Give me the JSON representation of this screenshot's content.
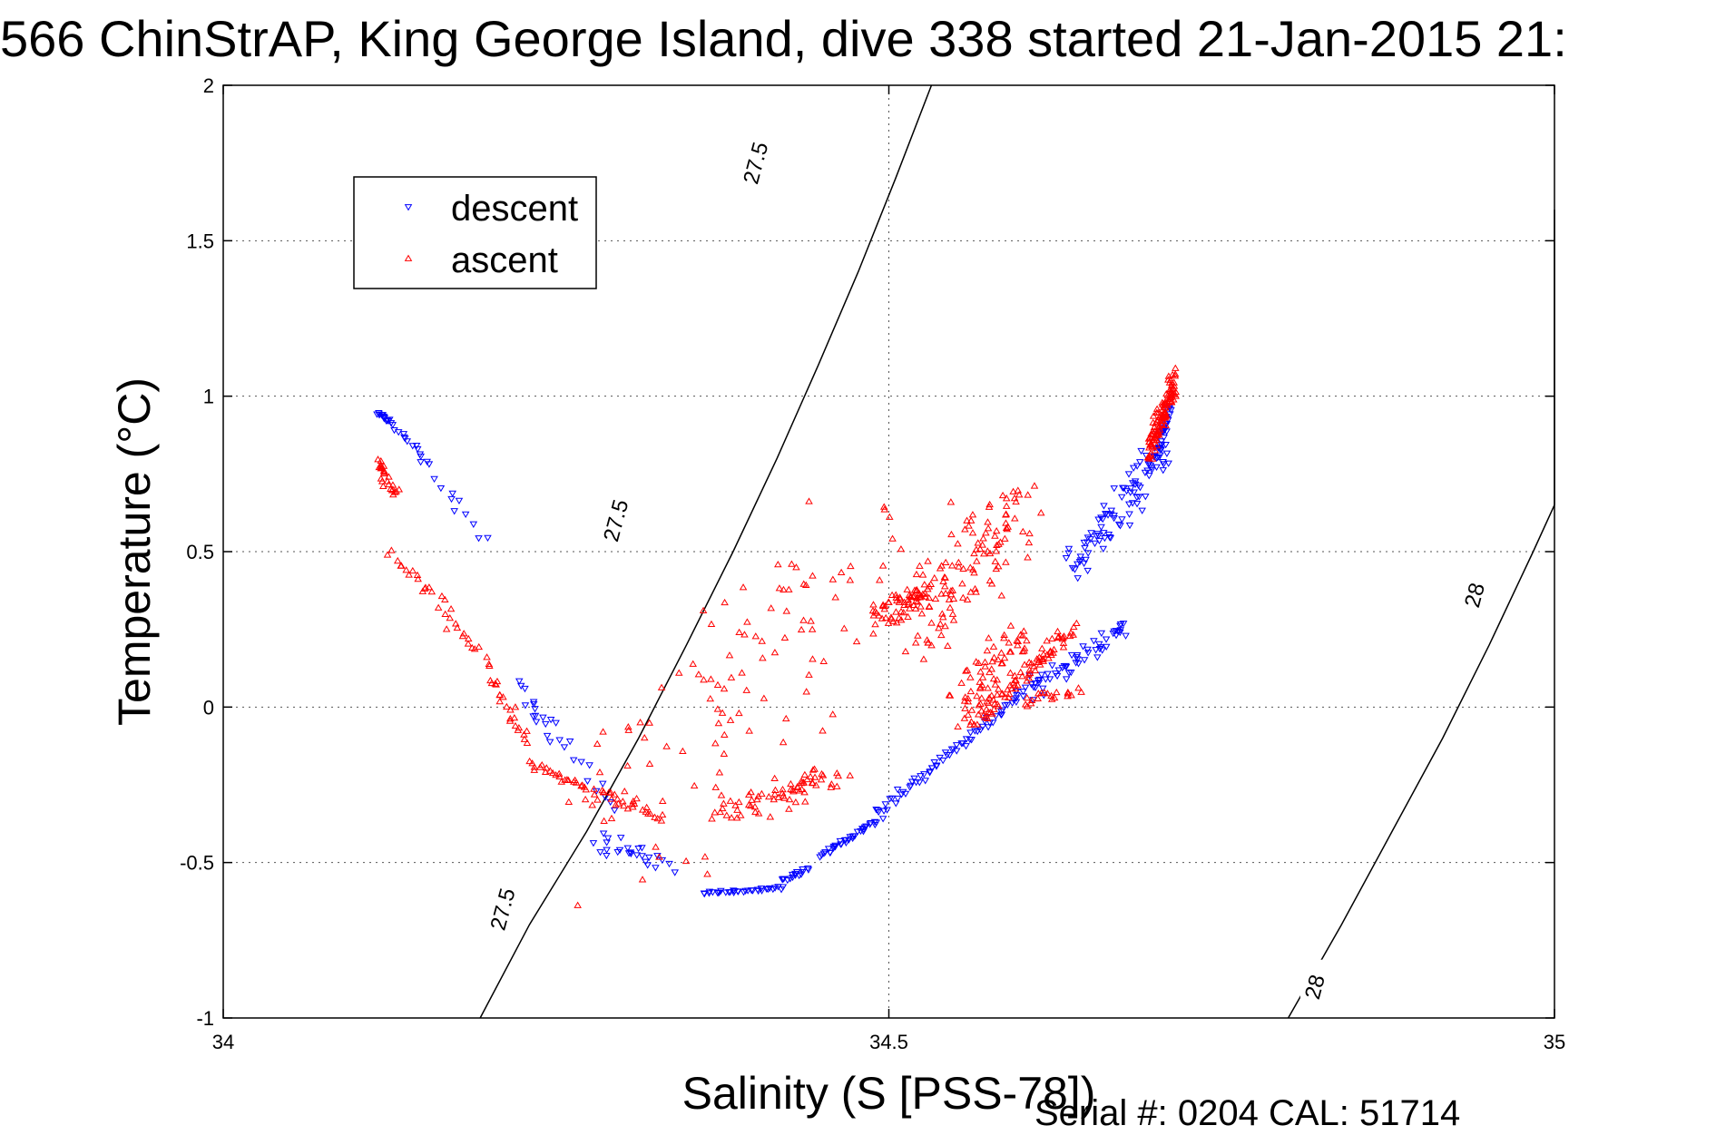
{
  "chart_data": {
    "type": "scatter",
    "title": "566 ChinStrAP, King George Island, dive 338 started 21-Jan-2015 21:",
    "xlabel": "Salinity (S [PSS-78])",
    "ylabel": "Temperature (°C)",
    "xlim": [
      34,
      35
    ],
    "ylim": [
      -1,
      2
    ],
    "x_ticks": [
      "34",
      "34.5",
      "35"
    ],
    "y_ticks": [
      "-1",
      "-0.5",
      "0",
      "0.5",
      "1",
      "1.5",
      "2"
    ],
    "x_tick_values": [
      34,
      34.5,
      35
    ],
    "y_tick_values": [
      -1,
      -0.5,
      0,
      0.5,
      1,
      1.5,
      2
    ],
    "grid": true,
    "legend_position": "top-left",
    "footer": "Serial #: 0204  CAL: 51714",
    "isopycnals": [
      {
        "label": "27.5",
        "points": [
          [
            34.193,
            -1.0
          ],
          [
            34.23,
            -0.7
          ],
          [
            34.273,
            -0.4
          ],
          [
            34.312,
            -0.1
          ],
          [
            34.348,
            0.2
          ],
          [
            34.383,
            0.5
          ],
          [
            34.416,
            0.8
          ],
          [
            34.447,
            1.1
          ],
          [
            34.477,
            1.4
          ],
          [
            34.505,
            1.7
          ],
          [
            34.532,
            2.0
          ]
        ],
        "label_positions": [
          [
            34.21,
            -0.65
          ],
          [
            34.295,
            0.6
          ],
          [
            34.4,
            1.75
          ]
        ]
      },
      {
        "label": "28",
        "points": [
          [
            34.8,
            -1.0
          ],
          [
            34.84,
            -0.7
          ],
          [
            34.878,
            -0.4
          ],
          [
            34.916,
            -0.1
          ],
          [
            34.951,
            0.2
          ],
          [
            34.984,
            0.5
          ],
          [
            35.0,
            0.65
          ]
        ],
        "label_positions": [
          [
            34.82,
            -0.9
          ],
          [
            34.94,
            0.36
          ]
        ],
        "continuation": [
          [
            35.0,
            0.65
          ],
          [
            35.0,
            1.6
          ]
        ]
      }
    ],
    "series": [
      {
        "name": "descent",
        "color": "#0000ff",
        "marker": "triangle-down",
        "segments": [
          {
            "n": 14,
            "x": [
              34.115,
              34.125
            ],
            "y": [
              0.95,
              0.92
            ],
            "jitter": [
              0.002,
              0.008
            ]
          },
          {
            "n": 16,
            "x": [
              34.125,
              34.155
            ],
            "y": [
              0.92,
              0.78
            ],
            "jitter": [
              0.004,
              0.015
            ]
          },
          {
            "n": 10,
            "x": [
              34.155,
              34.195
            ],
            "y": [
              0.74,
              0.55
            ],
            "jitter": [
              0.012,
              0.05
            ]
          },
          {
            "n": 14,
            "x": [
              34.225,
              34.245
            ],
            "y": [
              0.08,
              -0.1
            ],
            "jitter": [
              0.008,
              0.05
            ]
          },
          {
            "n": 14,
            "x": [
              34.245,
              34.295
            ],
            "y": [
              -0.05,
              -0.32
            ],
            "jitter": [
              0.01,
              0.04
            ]
          },
          {
            "n": 26,
            "x": [
              34.28,
              34.335
            ],
            "y": [
              -0.42,
              -0.52
            ],
            "jitter": [
              0.02,
              0.04
            ]
          },
          {
            "n": 34,
            "x": [
              34.36,
              34.42
            ],
            "y": [
              -0.6,
              -0.58
            ],
            "jitter": [
              0.004,
              0.008
            ]
          },
          {
            "n": 16,
            "x": [
              34.42,
              34.44
            ],
            "y": [
              -0.56,
              -0.52
            ],
            "jitter": [
              0.005,
              0.012
            ]
          },
          {
            "n": 34,
            "x": [
              34.45,
              34.49
            ],
            "y": [
              -0.48,
              -0.37
            ],
            "jitter": [
              0.005,
              0.015
            ]
          },
          {
            "n": 70,
            "x": [
              34.49,
              34.6
            ],
            "y": [
              -0.35,
              0.05
            ],
            "jitter": [
              0.005,
              0.025
            ]
          },
          {
            "n": 60,
            "x": [
              34.6,
              34.68
            ],
            "y": [
              0.05,
              0.25
            ],
            "jitter": [
              0.012,
              0.05
            ]
          },
          {
            "n": 90,
            "x": [
              34.64,
              34.705
            ],
            "y": [
              0.45,
              0.82
            ],
            "jitter": [
              0.018,
              0.09
            ]
          },
          {
            "n": 34,
            "x": [
              34.7,
              34.71
            ],
            "y": [
              0.8,
              0.96
            ],
            "jitter": [
              0.004,
              0.05
            ]
          }
        ]
      },
      {
        "name": "ascent",
        "color": "#ff0000",
        "marker": "triangle-up",
        "segments": [
          {
            "n": 14,
            "x": [
              34.118,
              34.122
            ],
            "y": [
              0.79,
              0.74
            ],
            "jitter": [
              0.004,
              0.02
            ]
          },
          {
            "n": 12,
            "x": [
              34.12,
              34.13
            ],
            "y": [
              0.73,
              0.68
            ],
            "jitter": [
              0.006,
              0.03
            ]
          },
          {
            "n": 34,
            "x": [
              34.125,
              34.2
            ],
            "y": [
              0.5,
              0.15
            ],
            "jitter": [
              0.008,
              0.04
            ]
          },
          {
            "n": 22,
            "x": [
              34.2,
              34.228
            ],
            "y": [
              0.1,
              -0.12
            ],
            "jitter": [
              0.005,
              0.04
            ]
          },
          {
            "n": 50,
            "x": [
              34.228,
              34.33
            ],
            "y": [
              -0.18,
              -0.36
            ],
            "jitter": [
              0.006,
              0.02
            ]
          },
          {
            "n": 110,
            "x": [
              34.28,
              34.49
            ],
            "y": [
              -0.4,
              0.55
            ],
            "jitter": [
              0.09,
              0.42
            ]
          },
          {
            "n": 70,
            "x": [
              34.38,
              34.46
            ],
            "y": [
              -0.34,
              -0.22
            ],
            "jitter": [
              0.03,
              0.06
            ]
          },
          {
            "n": 60,
            "x": [
              34.49,
              34.53
            ],
            "y": [
              0.28,
              0.38
            ],
            "jitter": [
              0.01,
              0.06
            ]
          },
          {
            "n": 120,
            "x": [
              34.52,
              34.6
            ],
            "y": [
              0.25,
              0.65
            ],
            "jitter": [
              0.035,
              0.2
            ]
          },
          {
            "n": 60,
            "x": [
              34.55,
              34.6
            ],
            "y": [
              0.02,
              0.25
            ],
            "jitter": [
              0.02,
              0.1
            ]
          },
          {
            "n": 90,
            "x": [
              34.56,
              34.64
            ],
            "y": [
              -0.06,
              0.25
            ],
            "jitter": [
              0.012,
              0.04
            ]
          },
          {
            "n": 20,
            "x": [
              34.6,
              34.64
            ],
            "y": [
              0.02,
              0.05
            ],
            "jitter": [
              0.01,
              0.04
            ]
          },
          {
            "n": 120,
            "x": [
              34.695,
              34.715
            ],
            "y": [
              0.82,
              1.05
            ],
            "jitter": [
              0.004,
              0.06
            ]
          }
        ]
      }
    ]
  }
}
